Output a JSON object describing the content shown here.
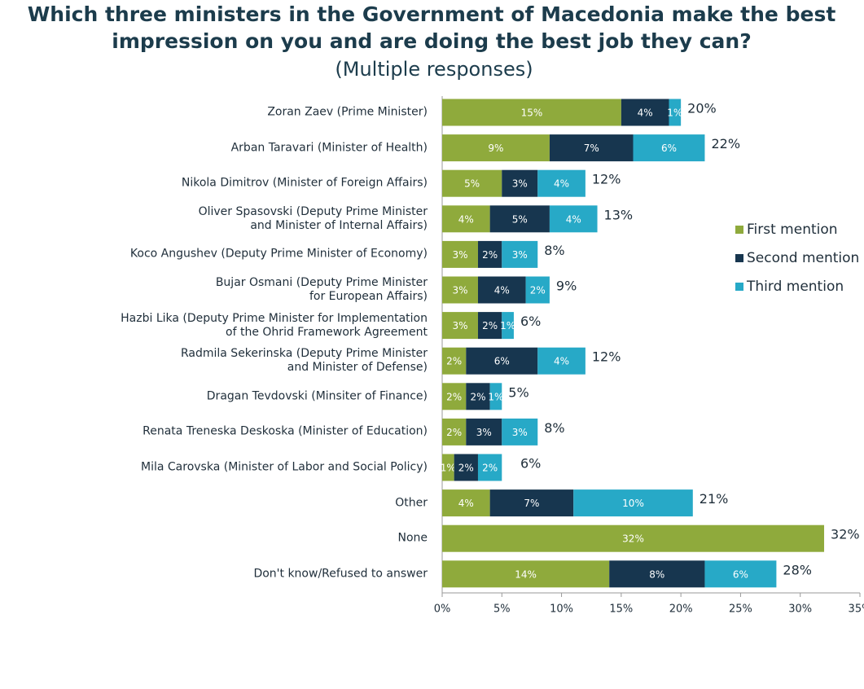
{
  "chart_data": {
    "type": "stacked-bar-horizontal",
    "title": [
      "Which three ministers in the Government of Macedonia make the best",
      "impression on you and are doing the best job they can?"
    ],
    "subtitle": "(Multiple responses)",
    "categories": [
      "Zoran Zaev (Prime Minister)",
      "Arban Taravari (Minister of Health)",
      "Nikola Dimitrov (Minister of Foreign Affairs)",
      "Oliver Spasovski (Deputy Prime Minister\nand Minister of Internal Affairs)",
      "Koco Angushev (Deputy Prime Minister of Economy)",
      "Bujar Osmani (Deputy Prime Minister\nfor European Affairs)",
      "Hazbi Lika (Deputy Prime Minister for Implementation\nof the Ohrid Framework Agreement",
      "Radmila Sekerinska  (Deputy Prime Minister\nand Minister of Defense)",
      "Dragan Tevdovski (Minsiter of Finance)",
      "Renata Treneska Deskoska (Minister of Education)",
      "Mila Carovska (Minister of Labor and Social Policy)",
      "Other",
      "None",
      "Don't know/Refused to answer"
    ],
    "series": [
      {
        "name": "First mention",
        "color": "#8faa3c",
        "values": [
          15,
          9,
          5,
          4,
          3,
          3,
          3,
          2,
          2,
          2,
          1,
          4,
          32,
          14
        ],
        "value_labels": [
          "15%",
          "9%",
          "5%",
          "4%",
          "3%",
          "3%",
          "3%",
          "2%",
          "2%",
          "2%",
          "1%",
          "4%",
          "32%",
          "14%"
        ]
      },
      {
        "name": "Second mention",
        "color": "#17364f",
        "values": [
          4,
          7,
          3,
          5,
          2,
          4,
          2,
          6,
          2,
          3,
          2,
          7,
          null,
          8
        ],
        "value_labels": [
          "4%",
          "7%",
          "3%",
          "5%",
          "2%",
          "4%",
          "2%",
          "6%",
          "2%",
          "3%",
          "2%",
          "7%",
          null,
          "8%"
        ]
      },
      {
        "name": "Third mention",
        "color": "#27a9c7",
        "values": [
          1,
          6,
          4,
          4,
          3,
          2,
          1,
          4,
          1,
          3,
          2,
          10,
          null,
          6
        ],
        "value_labels": [
          "1%",
          "6%",
          "4%",
          "4%",
          "3%",
          "2%",
          "1%",
          "4%",
          "1%",
          "3%",
          "2%",
          "10%",
          null,
          "6%"
        ]
      }
    ],
    "totals": [
      20,
      22,
      12,
      13,
      8,
      9,
      6,
      12,
      5,
      8,
      6,
      21,
      32,
      28
    ],
    "total_labels": [
      "20%",
      "22%",
      "12%",
      "13%",
      "8%",
      "9%",
      "6%",
      "12%",
      "5%",
      "8%",
      "6%",
      "21%",
      "32%",
      "28%"
    ],
    "xlim": [
      0,
      35
    ],
    "xticks": [
      {
        "value": 0,
        "label": "0%"
      },
      {
        "value": 5,
        "label": "5%"
      },
      {
        "value": 10,
        "label": "10%"
      },
      {
        "value": 15,
        "label": "15%"
      },
      {
        "value": 20,
        "label": "20%"
      },
      {
        "value": 25,
        "label": "25%"
      },
      {
        "value": 30,
        "label": "30%"
      },
      {
        "value": 35,
        "label": "35%"
      }
    ],
    "legend": "right"
  }
}
